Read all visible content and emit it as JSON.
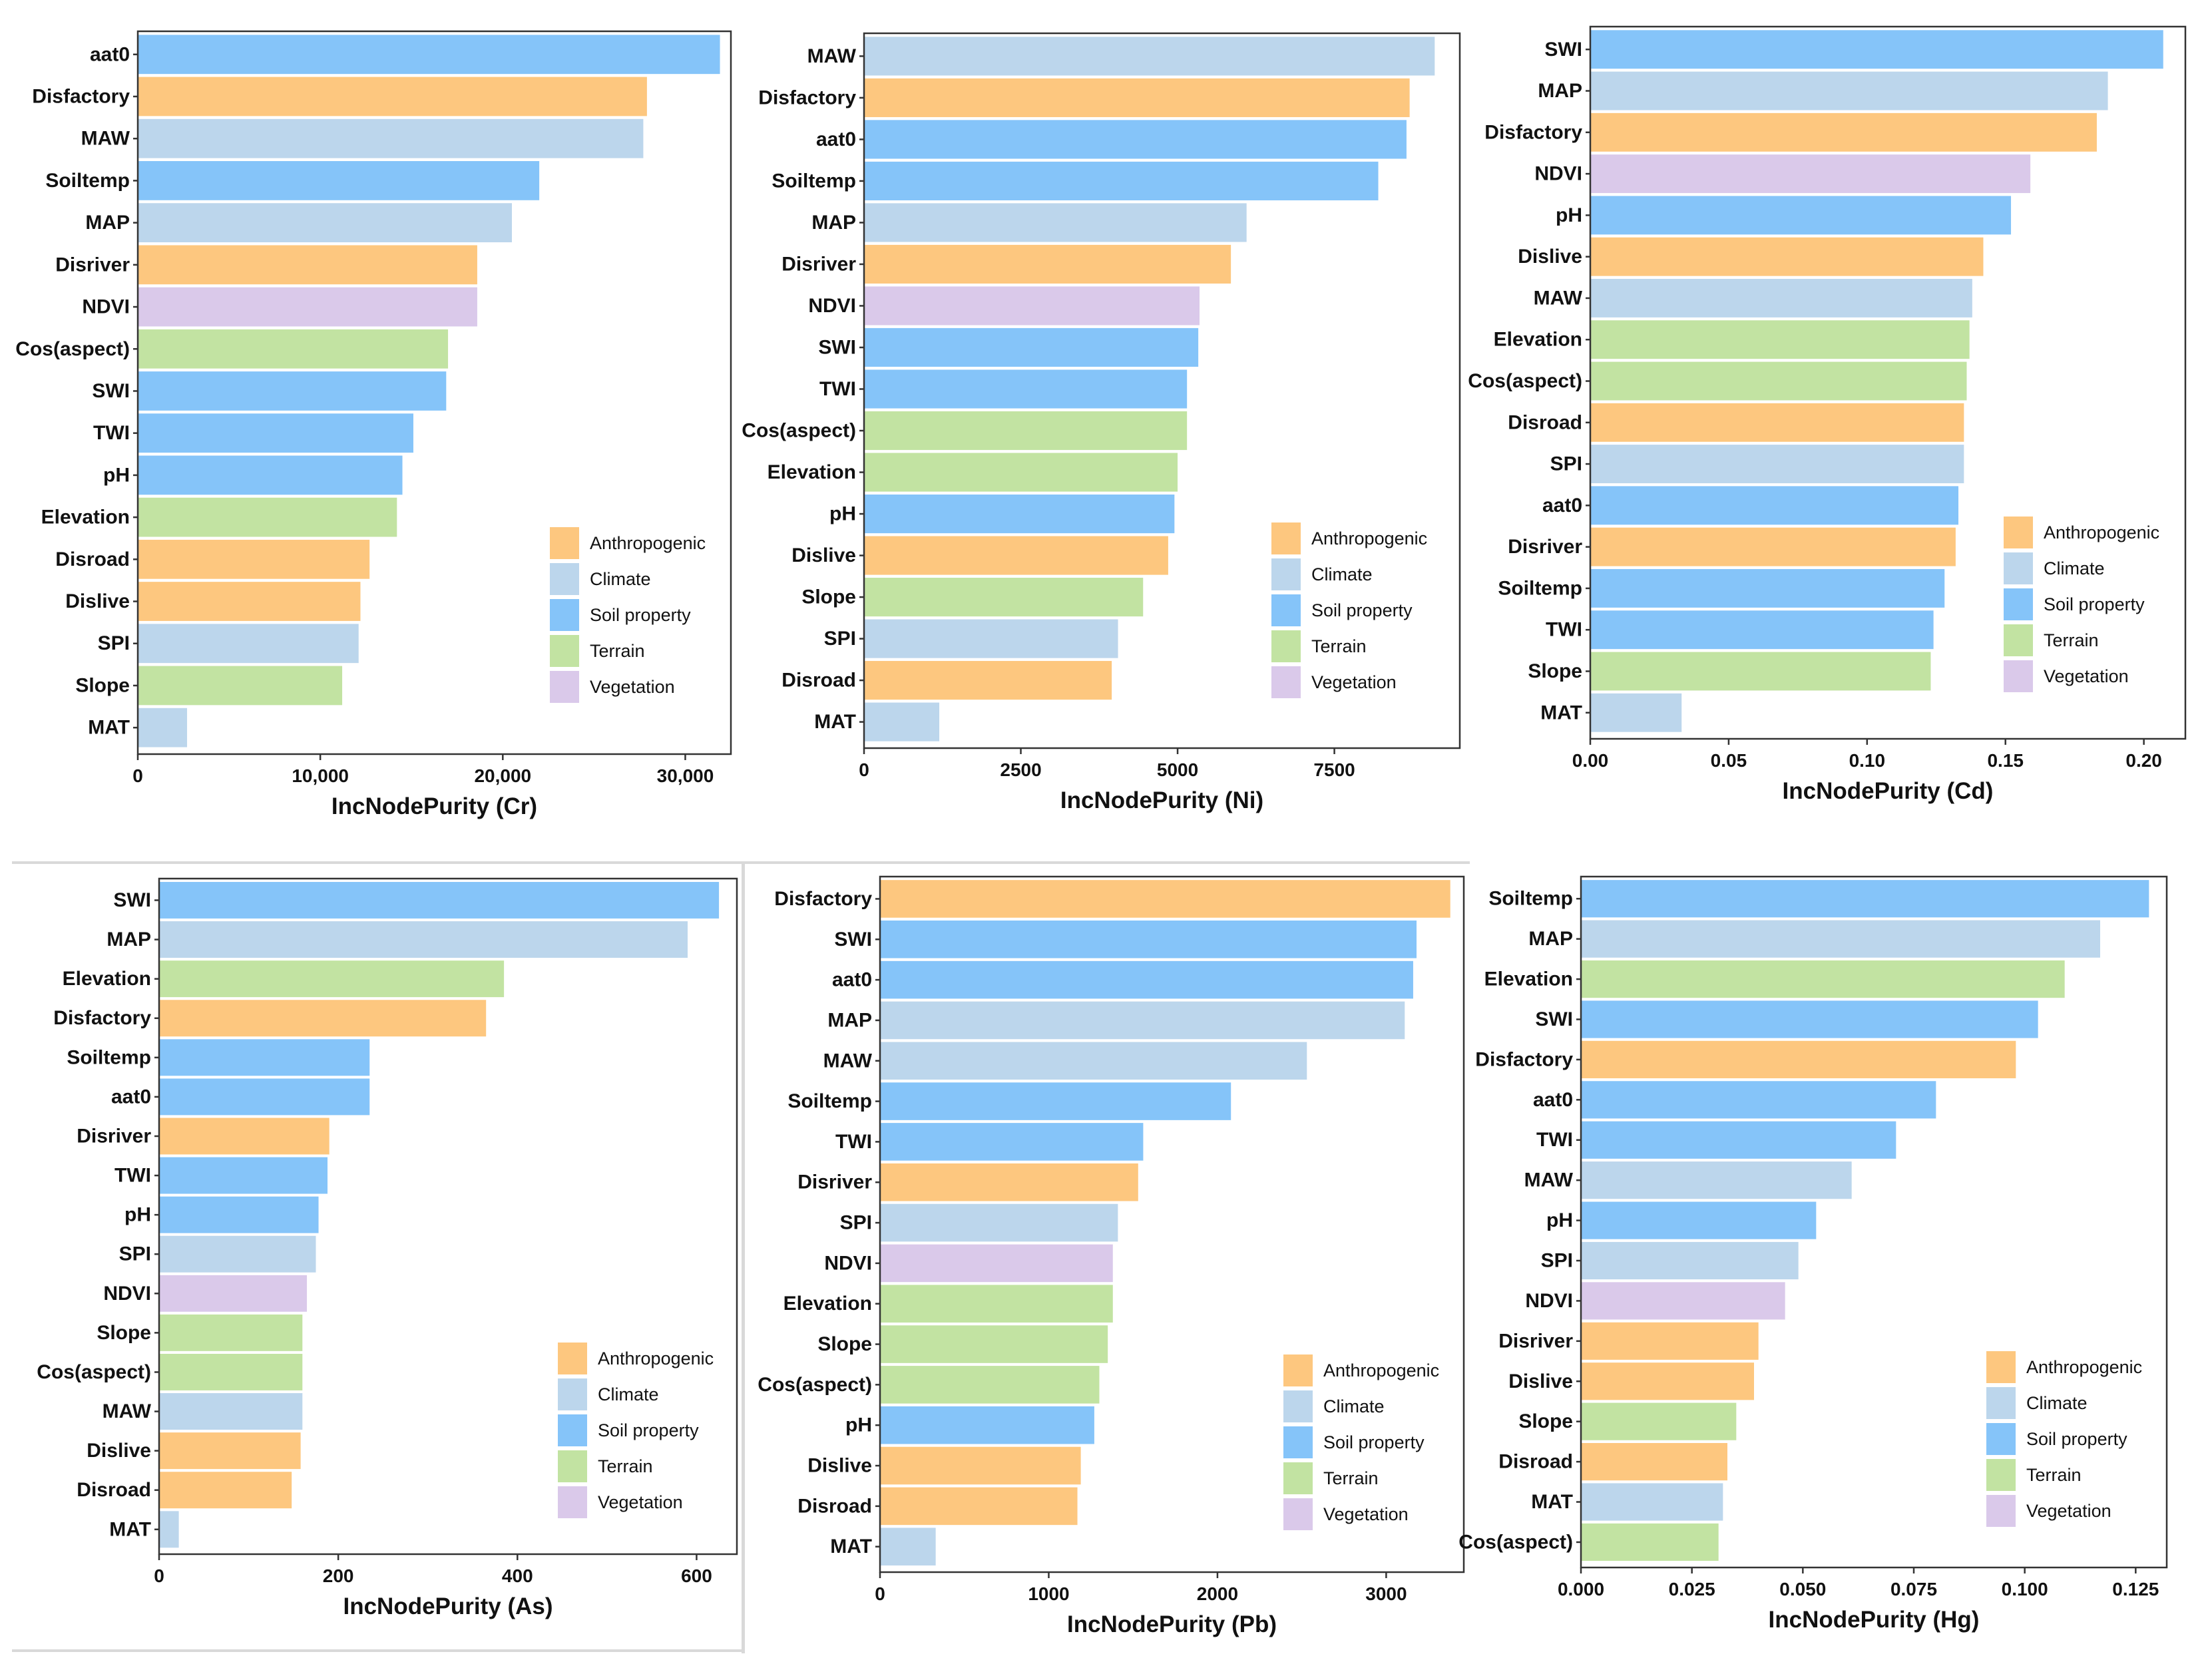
{
  "legend": {
    "categories": [
      {
        "key": "anthro",
        "label": "Anthropogenic",
        "color": "#fdc77f"
      },
      {
        "key": "climate",
        "label": "Climate",
        "color": "#bcd6ec"
      },
      {
        "key": "soil",
        "label": "Soil property",
        "color": "#85c4f9"
      },
      {
        "key": "terrain",
        "label": "Terrain",
        "color": "#c2e3a2"
      },
      {
        "key": "veg",
        "label": "Vegetation",
        "color": "#dac9ea"
      }
    ]
  },
  "chart_data": [
    {
      "type": "bar",
      "orientation": "horizontal",
      "title": "",
      "xlabel": "IncNodePurity (Cr)",
      "ylabel": "",
      "xlim": [
        0,
        32500
      ],
      "xticks": [
        0,
        10000,
        20000,
        30000
      ],
      "xtick_labels": [
        "0",
        "10,000",
        "20,000",
        "30,000"
      ],
      "legend_position": "bottom-right",
      "categories": [
        "aat0",
        "Disfactory",
        "MAW",
        "Soiltemp",
        "MAP",
        "Disriver",
        "NDVI",
        "Cos(aspect)",
        "SWI",
        "TWI",
        "pH",
        "Elevation",
        "Disroad",
        "Dislive",
        "SPI",
        "Slope",
        "MAT"
      ],
      "values": [
        31900,
        27900,
        27700,
        22000,
        20500,
        18600,
        18600,
        17000,
        16900,
        15100,
        14500,
        14200,
        12700,
        12200,
        12100,
        11200,
        2700
      ],
      "groups": [
        "soil",
        "anthro",
        "climate",
        "soil",
        "climate",
        "anthro",
        "veg",
        "terrain",
        "soil",
        "soil",
        "soil",
        "terrain",
        "anthro",
        "anthro",
        "climate",
        "terrain",
        "climate"
      ]
    },
    {
      "type": "bar",
      "orientation": "horizontal",
      "title": "",
      "xlabel": "IncNodePurity (Ni)",
      "ylabel": "",
      "xlim": [
        0,
        9500
      ],
      "xticks": [
        0,
        2500,
        5000,
        7500
      ],
      "xtick_labels": [
        "0",
        "2500",
        "5000",
        "7500"
      ],
      "legend_position": "bottom-right",
      "categories": [
        "MAW",
        "Disfactory",
        "aat0",
        "Soiltemp",
        "MAP",
        "Disriver",
        "NDVI",
        "SWI",
        "TWI",
        "Cos(aspect)",
        "Elevation",
        "pH",
        "Dislive",
        "Slope",
        "SPI",
        "Disroad",
        "MAT"
      ],
      "values": [
        9100,
        8700,
        8650,
        8200,
        6100,
        5850,
        5350,
        5330,
        5150,
        5150,
        5000,
        4950,
        4850,
        4450,
        4050,
        3950,
        1200
      ],
      "groups": [
        "climate",
        "anthro",
        "soil",
        "soil",
        "climate",
        "anthro",
        "veg",
        "soil",
        "soil",
        "terrain",
        "terrain",
        "soil",
        "anthro",
        "terrain",
        "climate",
        "anthro",
        "climate"
      ]
    },
    {
      "type": "bar",
      "orientation": "horizontal",
      "title": "",
      "xlabel": "IncNodePurity (Cd)",
      "ylabel": "",
      "xlim": [
        0,
        0.215
      ],
      "xticks": [
        0,
        0.05,
        0.1,
        0.15,
        0.2
      ],
      "xtick_labels": [
        "0.00",
        "0.05",
        "0.10",
        "0.15",
        "0.20"
      ],
      "legend_position": "bottom-right",
      "categories": [
        "SWI",
        "MAP",
        "Disfactory",
        "NDVI",
        "pH",
        "Dislive",
        "MAW",
        "Elevation",
        "Cos(aspect)",
        "Disroad",
        "SPI",
        "aat0",
        "Disriver",
        "Soiltemp",
        "TWI",
        "Slope",
        "MAT"
      ],
      "values": [
        0.207,
        0.187,
        0.183,
        0.159,
        0.152,
        0.142,
        0.138,
        0.137,
        0.136,
        0.135,
        0.135,
        0.133,
        0.132,
        0.128,
        0.124,
        0.123,
        0.033
      ],
      "groups": [
        "soil",
        "climate",
        "anthro",
        "veg",
        "soil",
        "anthro",
        "climate",
        "terrain",
        "terrain",
        "anthro",
        "climate",
        "soil",
        "anthro",
        "soil",
        "soil",
        "terrain",
        "climate"
      ]
    },
    {
      "type": "bar",
      "orientation": "horizontal",
      "title": "",
      "xlabel": "IncNodePurity (As)",
      "ylabel": "",
      "xlim": [
        0,
        645
      ],
      "xticks": [
        0,
        200,
        400,
        600
      ],
      "xtick_labels": [
        "0",
        "200",
        "400",
        "600"
      ],
      "legend_position": "bottom-right",
      "categories": [
        "SWI",
        "MAP",
        "Elevation",
        "Disfactory",
        "Soiltemp",
        "aat0",
        "Disriver",
        "TWI",
        "pH",
        "SPI",
        "NDVI",
        "Slope",
        "Cos(aspect)",
        "MAW",
        "Dislive",
        "Disroad",
        "MAT"
      ],
      "values": [
        625,
        590,
        385,
        365,
        235,
        235,
        190,
        188,
        178,
        175,
        165,
        160,
        160,
        160,
        158,
        148,
        22
      ],
      "groups": [
        "soil",
        "climate",
        "terrain",
        "anthro",
        "soil",
        "soil",
        "anthro",
        "soil",
        "soil",
        "climate",
        "veg",
        "terrain",
        "terrain",
        "climate",
        "anthro",
        "anthro",
        "climate"
      ]
    },
    {
      "type": "bar",
      "orientation": "horizontal",
      "title": "",
      "xlabel": "IncNodePurity (Pb)",
      "ylabel": "",
      "xlim": [
        0,
        3460
      ],
      "xticks": [
        0,
        1000,
        2000,
        3000
      ],
      "xtick_labels": [
        "0",
        "1000",
        "2000",
        "3000"
      ],
      "legend_position": "bottom-right",
      "categories": [
        "Disfactory",
        "SWI",
        "aat0",
        "MAP",
        "MAW",
        "Soiltemp",
        "TWI",
        "Disriver",
        "SPI",
        "NDVI",
        "Elevation",
        "Slope",
        "Cos(aspect)",
        "pH",
        "Dislive",
        "Disroad",
        "MAT"
      ],
      "values": [
        3380,
        3180,
        3160,
        3110,
        2530,
        2080,
        1560,
        1530,
        1410,
        1380,
        1380,
        1350,
        1300,
        1270,
        1190,
        1170,
        330
      ],
      "groups": [
        "anthro",
        "soil",
        "soil",
        "climate",
        "climate",
        "soil",
        "soil",
        "anthro",
        "climate",
        "veg",
        "terrain",
        "terrain",
        "terrain",
        "soil",
        "anthro",
        "anthro",
        "climate"
      ]
    },
    {
      "type": "bar",
      "orientation": "horizontal",
      "title": "",
      "xlabel": "IncNodePurity (Hg)",
      "ylabel": "",
      "xlim": [
        0,
        0.132
      ],
      "xticks": [
        0,
        0.025,
        0.05,
        0.075,
        0.1,
        0.125
      ],
      "xtick_labels": [
        "0.000",
        "0.025",
        "0.050",
        "0.075",
        "0.100",
        "0.125"
      ],
      "legend_position": "bottom-right",
      "categories": [
        "Soiltemp",
        "MAP",
        "Elevation",
        "SWI",
        "Disfactory",
        "aat0",
        "TWI",
        "MAW",
        "pH",
        "SPI",
        "NDVI",
        "Disriver",
        "Dislive",
        "Slope",
        "Disroad",
        "MAT",
        "Cos(aspect)"
      ],
      "values": [
        0.128,
        0.117,
        0.109,
        0.103,
        0.098,
        0.08,
        0.071,
        0.061,
        0.053,
        0.049,
        0.046,
        0.04,
        0.039,
        0.035,
        0.033,
        0.032,
        0.031
      ],
      "groups": [
        "soil",
        "climate",
        "terrain",
        "soil",
        "anthro",
        "soil",
        "soil",
        "climate",
        "soil",
        "climate",
        "veg",
        "anthro",
        "anthro",
        "terrain",
        "anthro",
        "climate",
        "terrain"
      ]
    }
  ]
}
